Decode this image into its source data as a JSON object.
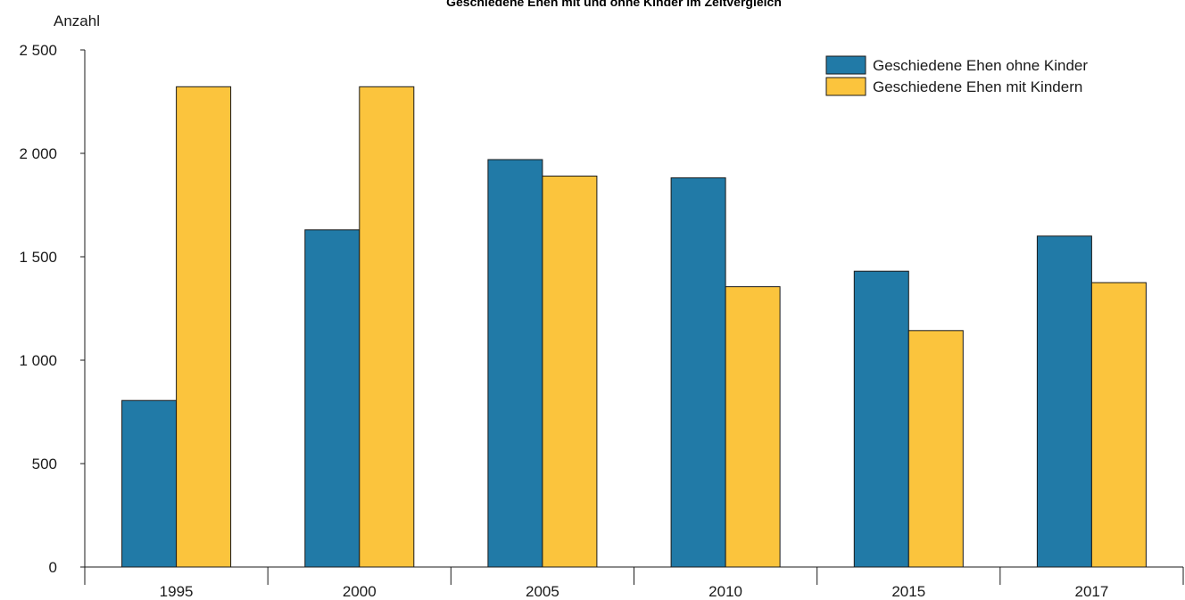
{
  "chart_data": {
    "type": "bar",
    "title": "Geschiedene Ehen mit und ohne Kinder im Zeitvergleich",
    "ylabel": "Anzahl",
    "xlabel": "",
    "categories": [
      "1995",
      "2000",
      "2005",
      "2010",
      "2015",
      "2017"
    ],
    "series": [
      {
        "name": "Geschiedene Ehen ohne Kinder",
        "color": "#217aa7",
        "values": [
          805,
          1630,
          1970,
          1882,
          1430,
          1600
        ]
      },
      {
        "name": "Geschiedene Ehen mit Kindern",
        "color": "#fbc43d",
        "values": [
          2322,
          2322,
          1890,
          1355,
          1143,
          1375
        ]
      }
    ],
    "ylim": [
      0,
      2500
    ],
    "yticks": [
      0,
      500,
      1000,
      1500,
      2000,
      2500
    ],
    "ytick_labels": [
      "0",
      "500",
      "1 000",
      "1 500",
      "2 000",
      "2 500"
    ],
    "grid": false,
    "legend_position": "top-right"
  }
}
